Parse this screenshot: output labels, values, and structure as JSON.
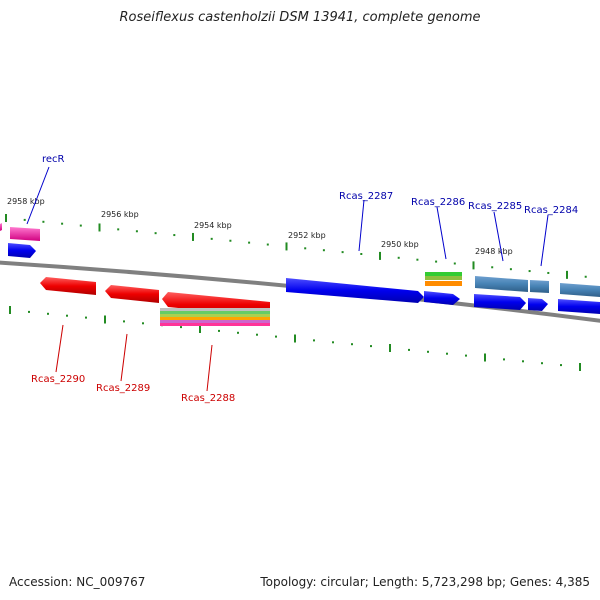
{
  "title": "Roseiflexus castenholzii DSM 13941, complete genome",
  "footer": {
    "accession": "Accession: NC_009767",
    "summary": "Topology: circular; Length: 5,723,298 bp; Genes: 4,385"
  },
  "colors": {
    "forward_gene": "#0000ee",
    "reverse_gene": "#ee0000",
    "tick": "#228b22",
    "backbone": "#808080",
    "forward_label": "#0000aa",
    "reverse_label": "#cc0000"
  },
  "scale_labels": [
    "2958 kbp",
    "2956 kbp",
    "2954 kbp",
    "2952 kbp",
    "2950 kbp",
    "2948 kbp"
  ],
  "forward_labels": [
    "recR",
    "Rcas_2287",
    "Rcas_2286",
    "Rcas_2285",
    "Rcas_2284"
  ],
  "reverse_labels": [
    "Rcas_2290",
    "Rcas_2289",
    "Rcas_2288"
  ]
}
